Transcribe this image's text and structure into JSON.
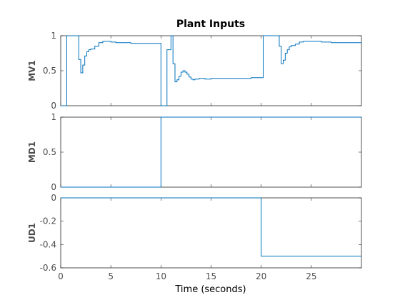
{
  "chart_data": {
    "type": "line",
    "title": "Plant Inputs",
    "xlabel": "Time (seconds)",
    "xlim": [
      0,
      30
    ],
    "xticks": [
      0,
      5,
      10,
      15,
      20,
      25
    ],
    "series_color": "#0072bd",
    "subplots": [
      {
        "ylabel": "MV1",
        "ylim": [
          0,
          1
        ],
        "yticks": [
          "0",
          "0.5",
          "1"
        ],
        "ytick_values": [
          0,
          0.5,
          1
        ],
        "step": true,
        "x": [
          0,
          0.6,
          1.2,
          1.8,
          2.0,
          2.2,
          2.4,
          2.6,
          2.8,
          3.0,
          3.4,
          3.8,
          4.2,
          4.6,
          5.0,
          5.5,
          6.0,
          7.0,
          8.0,
          9.0,
          10.0,
          10.6,
          11.0,
          11.2,
          11.4,
          11.6,
          11.8,
          12.0,
          12.2,
          12.4,
          12.6,
          12.8,
          13.0,
          13.2,
          13.4,
          13.8,
          14.4,
          15.0,
          16.0,
          17.0,
          18.0,
          19.0,
          20.2,
          20.4,
          21.0,
          21.6,
          21.8,
          22.0,
          22.2,
          22.4,
          22.6,
          22.8,
          23.0,
          23.4,
          23.8,
          24.2,
          25.0,
          26.0,
          27.0,
          28.0,
          29.0,
          30.0
        ],
        "y": [
          0,
          1,
          1,
          0.66,
          0.47,
          0.58,
          0.71,
          0.77,
          0.8,
          0.81,
          0.85,
          0.9,
          0.92,
          0.92,
          0.91,
          0.9,
          0.9,
          0.89,
          0.89,
          0.89,
          0,
          0.8,
          1,
          0.6,
          0.34,
          0.37,
          0.42,
          0.48,
          0.5,
          0.48,
          0.45,
          0.41,
          0.38,
          0.37,
          0.38,
          0.39,
          0.38,
          0.39,
          0.39,
          0.39,
          0.39,
          0.4,
          1,
          1,
          1,
          1,
          0.85,
          0.6,
          0.65,
          0.75,
          0.8,
          0.84,
          0.86,
          0.88,
          0.91,
          0.92,
          0.92,
          0.91,
          0.9,
          0.9,
          0.9,
          0.9
        ]
      },
      {
        "ylabel": "MD1",
        "ylim": [
          0,
          1
        ],
        "yticks": [
          "0",
          "0.5",
          "1"
        ],
        "ytick_values": [
          0,
          0.5,
          1
        ],
        "step": true,
        "x": [
          0,
          10,
          30
        ],
        "y": [
          0,
          1,
          1
        ]
      },
      {
        "ylabel": "UD1",
        "ylim": [
          -0.6,
          0
        ],
        "yticks": [
          "0",
          "-0.2",
          "-0.4",
          "-0.6"
        ],
        "ytick_values": [
          0,
          -0.2,
          -0.4,
          -0.6
        ],
        "step": true,
        "x": [
          0,
          20,
          30
        ],
        "y": [
          0,
          -0.5,
          -0.5
        ]
      }
    ]
  }
}
